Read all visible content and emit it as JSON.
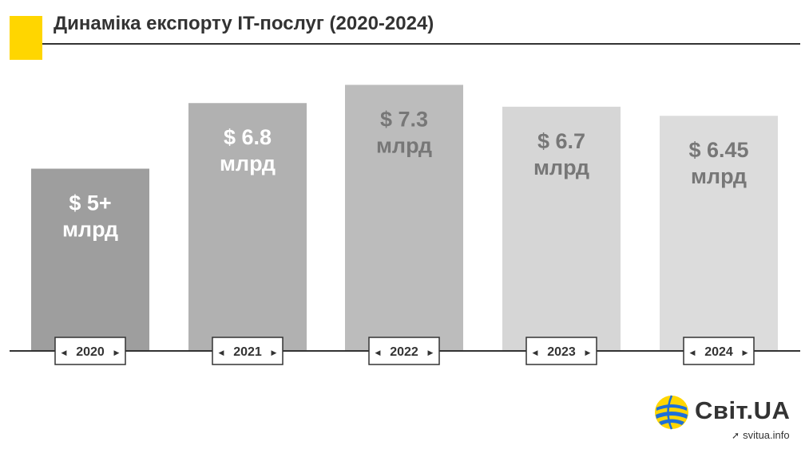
{
  "header": {
    "title": "Динаміка експорту IT-послуг (2020-2024)"
  },
  "colors": {
    "accent": "#FFD600",
    "axis": "#333333",
    "bars": [
      "#9e9e9e",
      "#b1b1b1",
      "#bcbcbc",
      "#d6d6d6",
      "#dcdcdc"
    ],
    "bar_label": [
      "#ffffff",
      "#ffffff",
      "#777777",
      "#777777",
      "#777777"
    ]
  },
  "chart_data": {
    "type": "bar",
    "categories": [
      "2020",
      "2021",
      "2022",
      "2023",
      "2024"
    ],
    "values": [
      5,
      6.8,
      7.3,
      6.7,
      6.45
    ],
    "data_labels": [
      [
        "$ 5+",
        "млрд"
      ],
      [
        "$ 6.8",
        "млрд"
      ],
      [
        "$ 7.3",
        "млрд"
      ],
      [
        "$ 6.7",
        "млрд"
      ],
      [
        "$ 6.45",
        "млрд"
      ]
    ],
    "title": "Динаміка експорту IT-послуг (2020-2024)",
    "xlabel": "",
    "ylabel": "",
    "grid": false
  },
  "brand": {
    "name": "Світ.UA",
    "site": "svitua.info",
    "site_icon": "send-arrow-icon",
    "logo_icon": "globe-logo-icon",
    "colors": [
      "#FFD600",
      "#1e6fd8"
    ]
  }
}
